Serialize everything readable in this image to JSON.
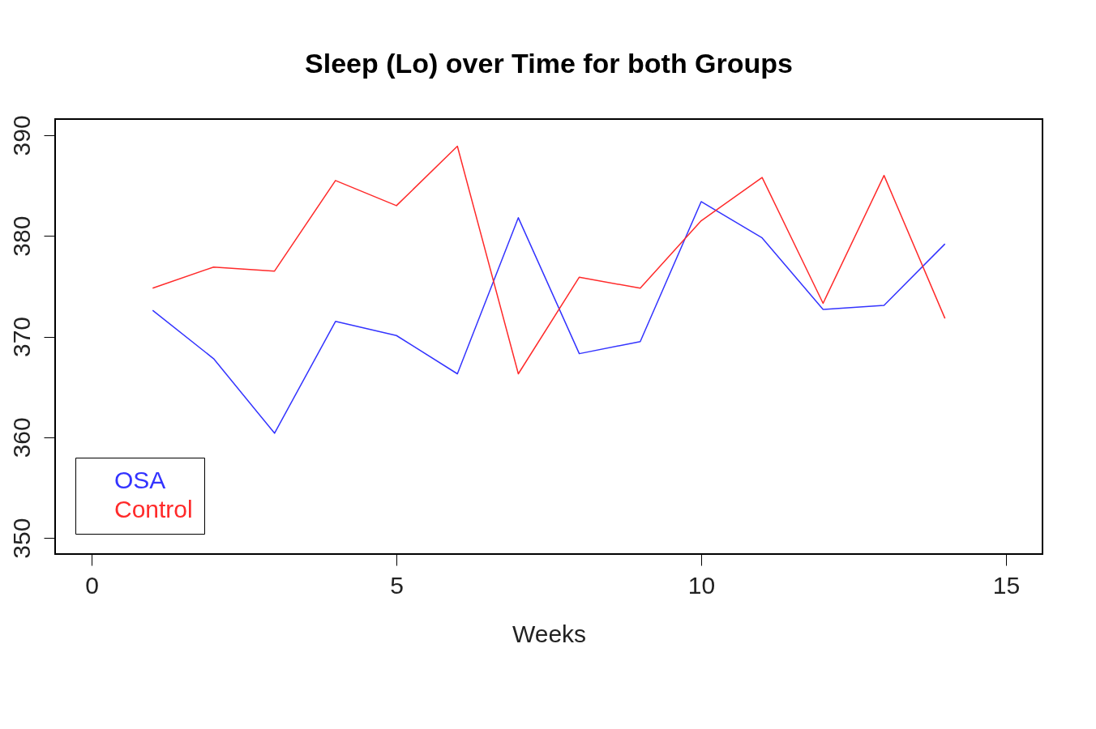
{
  "chart_data": {
    "type": "line",
    "title": "Sleep (Lo) over Time for both Groups",
    "xlabel": "Weeks",
    "x": [
      1,
      2,
      3,
      4,
      5,
      6,
      7,
      8,
      9,
      10,
      11,
      12,
      13,
      14
    ],
    "series": [
      {
        "name": "OSA",
        "color": "#3333ff",
        "values": [
          372.6,
          367.8,
          360.4,
          371.5,
          370.1,
          366.3,
          381.8,
          368.3,
          369.5,
          383.4,
          379.8,
          372.7,
          373.1,
          379.2
        ]
      },
      {
        "name": "Control",
        "color": "#ff2a2a",
        "values": [
          374.8,
          376.9,
          376.5,
          385.5,
          383.0,
          388.9,
          366.3,
          375.9,
          374.8,
          381.5,
          385.8,
          373.3,
          386.0,
          371.8
        ]
      }
    ],
    "xlim": [
      -0.6,
      15.6
    ],
    "ylim": [
      348.4,
      391.6
    ],
    "xticks": [
      0,
      5,
      10,
      15
    ],
    "yticks": [
      350,
      360,
      370,
      380,
      390
    ],
    "grid": false,
    "legend": "bottom left",
    "marker": "none",
    "line_style": "solid"
  }
}
